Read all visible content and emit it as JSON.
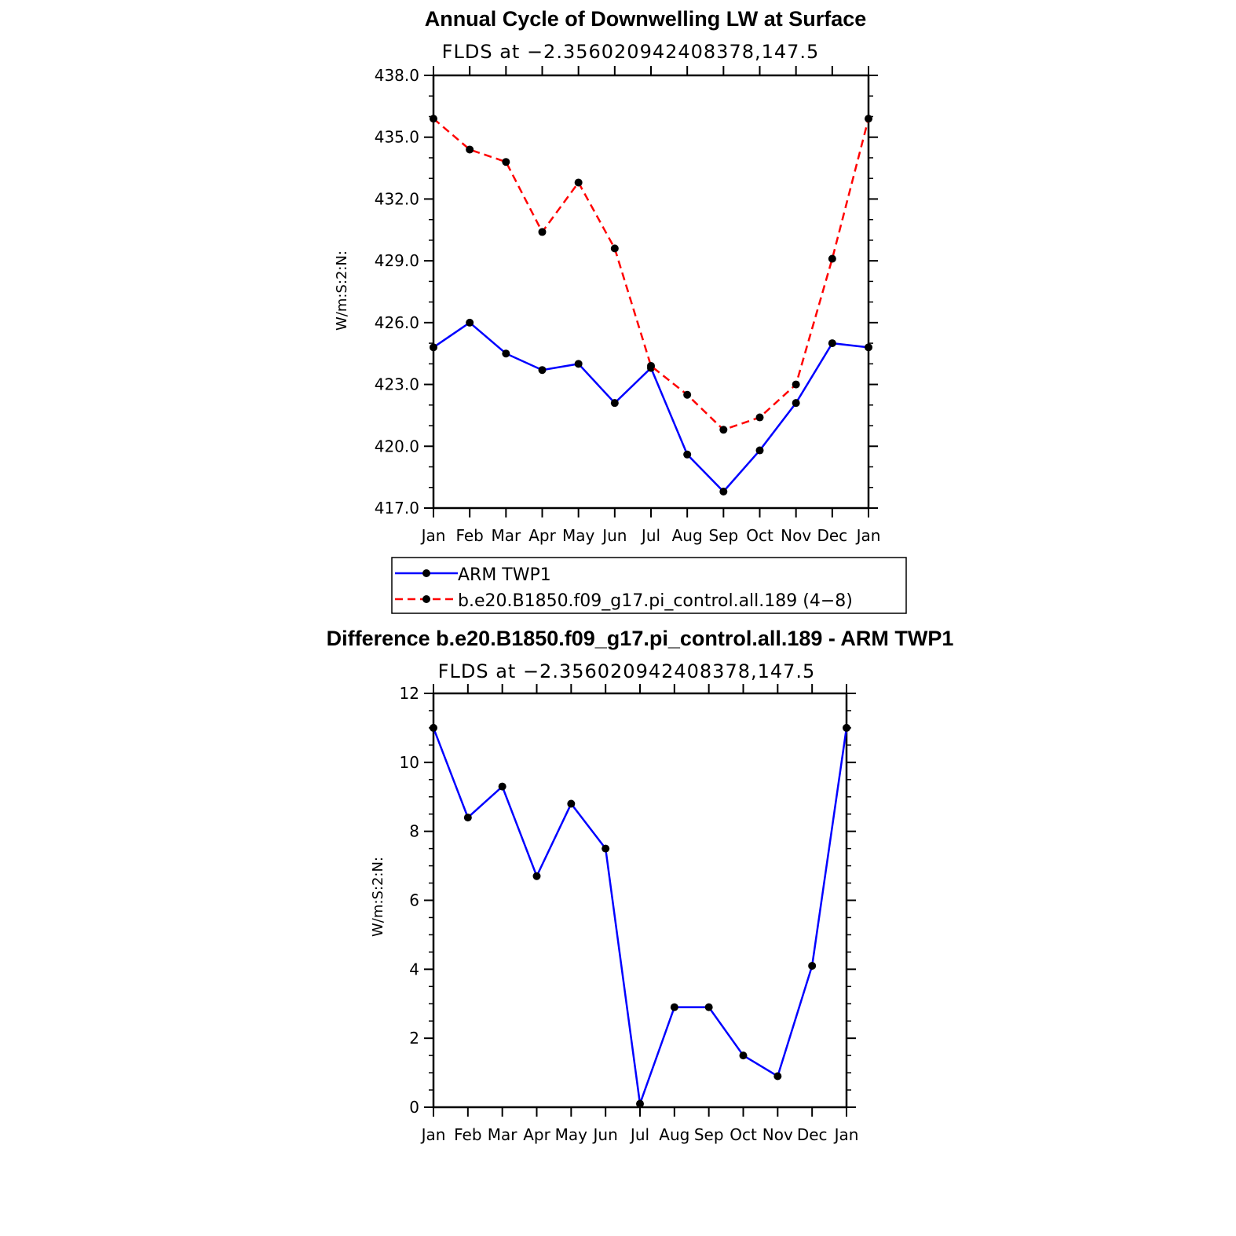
{
  "chart_data": [
    {
      "type": "line",
      "title": "Annual Cycle of Downwelling LW at Surface",
      "subtitle": "FLDS at −2.356020942408378,147.5",
      "ylabel": "W/m:S:2:N:",
      "xlabel": "",
      "categories": [
        "Jan",
        "Feb",
        "Mar",
        "Apr",
        "May",
        "Jun",
        "Jul",
        "Aug",
        "Sep",
        "Oct",
        "Nov",
        "Dec",
        "Jan"
      ],
      "ylim": [
        417.0,
        438.0
      ],
      "yticks": [
        "417.0",
        "420.0",
        "423.0",
        "426.0",
        "429.0",
        "432.0",
        "435.0",
        "438.0"
      ],
      "series": [
        {
          "name": "ARM TWP1",
          "color": "#0000ff",
          "dash": "solid",
          "values": [
            424.8,
            426.0,
            424.5,
            423.7,
            424.0,
            422.1,
            423.8,
            419.6,
            417.8,
            419.8,
            422.1,
            425.0,
            424.8
          ]
        },
        {
          "name": "b.e20.B1850.f09_g17.pi_control.all.189 (4−8)",
          "color": "#ff0000",
          "dash": "dashed",
          "values": [
            435.9,
            434.4,
            433.8,
            430.4,
            432.8,
            429.6,
            423.9,
            422.5,
            420.8,
            421.4,
            423.0,
            429.1,
            435.9
          ]
        }
      ],
      "legend": "below",
      "grid": false
    },
    {
      "type": "line",
      "title": "Difference b.e20.B1850.f09_g17.pi_control.all.189 - ARM TWP1",
      "subtitle": "FLDS at −2.356020942408378,147.5",
      "ylabel": "W/m:S:2:N:",
      "xlabel": "",
      "categories": [
        "Jan",
        "Feb",
        "Mar",
        "Apr",
        "May",
        "Jun",
        "Jul",
        "Aug",
        "Sep",
        "Oct",
        "Nov",
        "Dec",
        "Jan"
      ],
      "ylim": [
        0,
        12
      ],
      "yticks": [
        "0",
        "2",
        "4",
        "6",
        "8",
        "10",
        "12"
      ],
      "series": [
        {
          "color": "#0000ff",
          "dash": "solid",
          "values": [
            11.0,
            8.4,
            9.3,
            6.7,
            8.8,
            7.5,
            0.1,
            2.9,
            2.9,
            1.5,
            0.9,
            4.1,
            11.0
          ]
        }
      ],
      "grid": false
    }
  ]
}
